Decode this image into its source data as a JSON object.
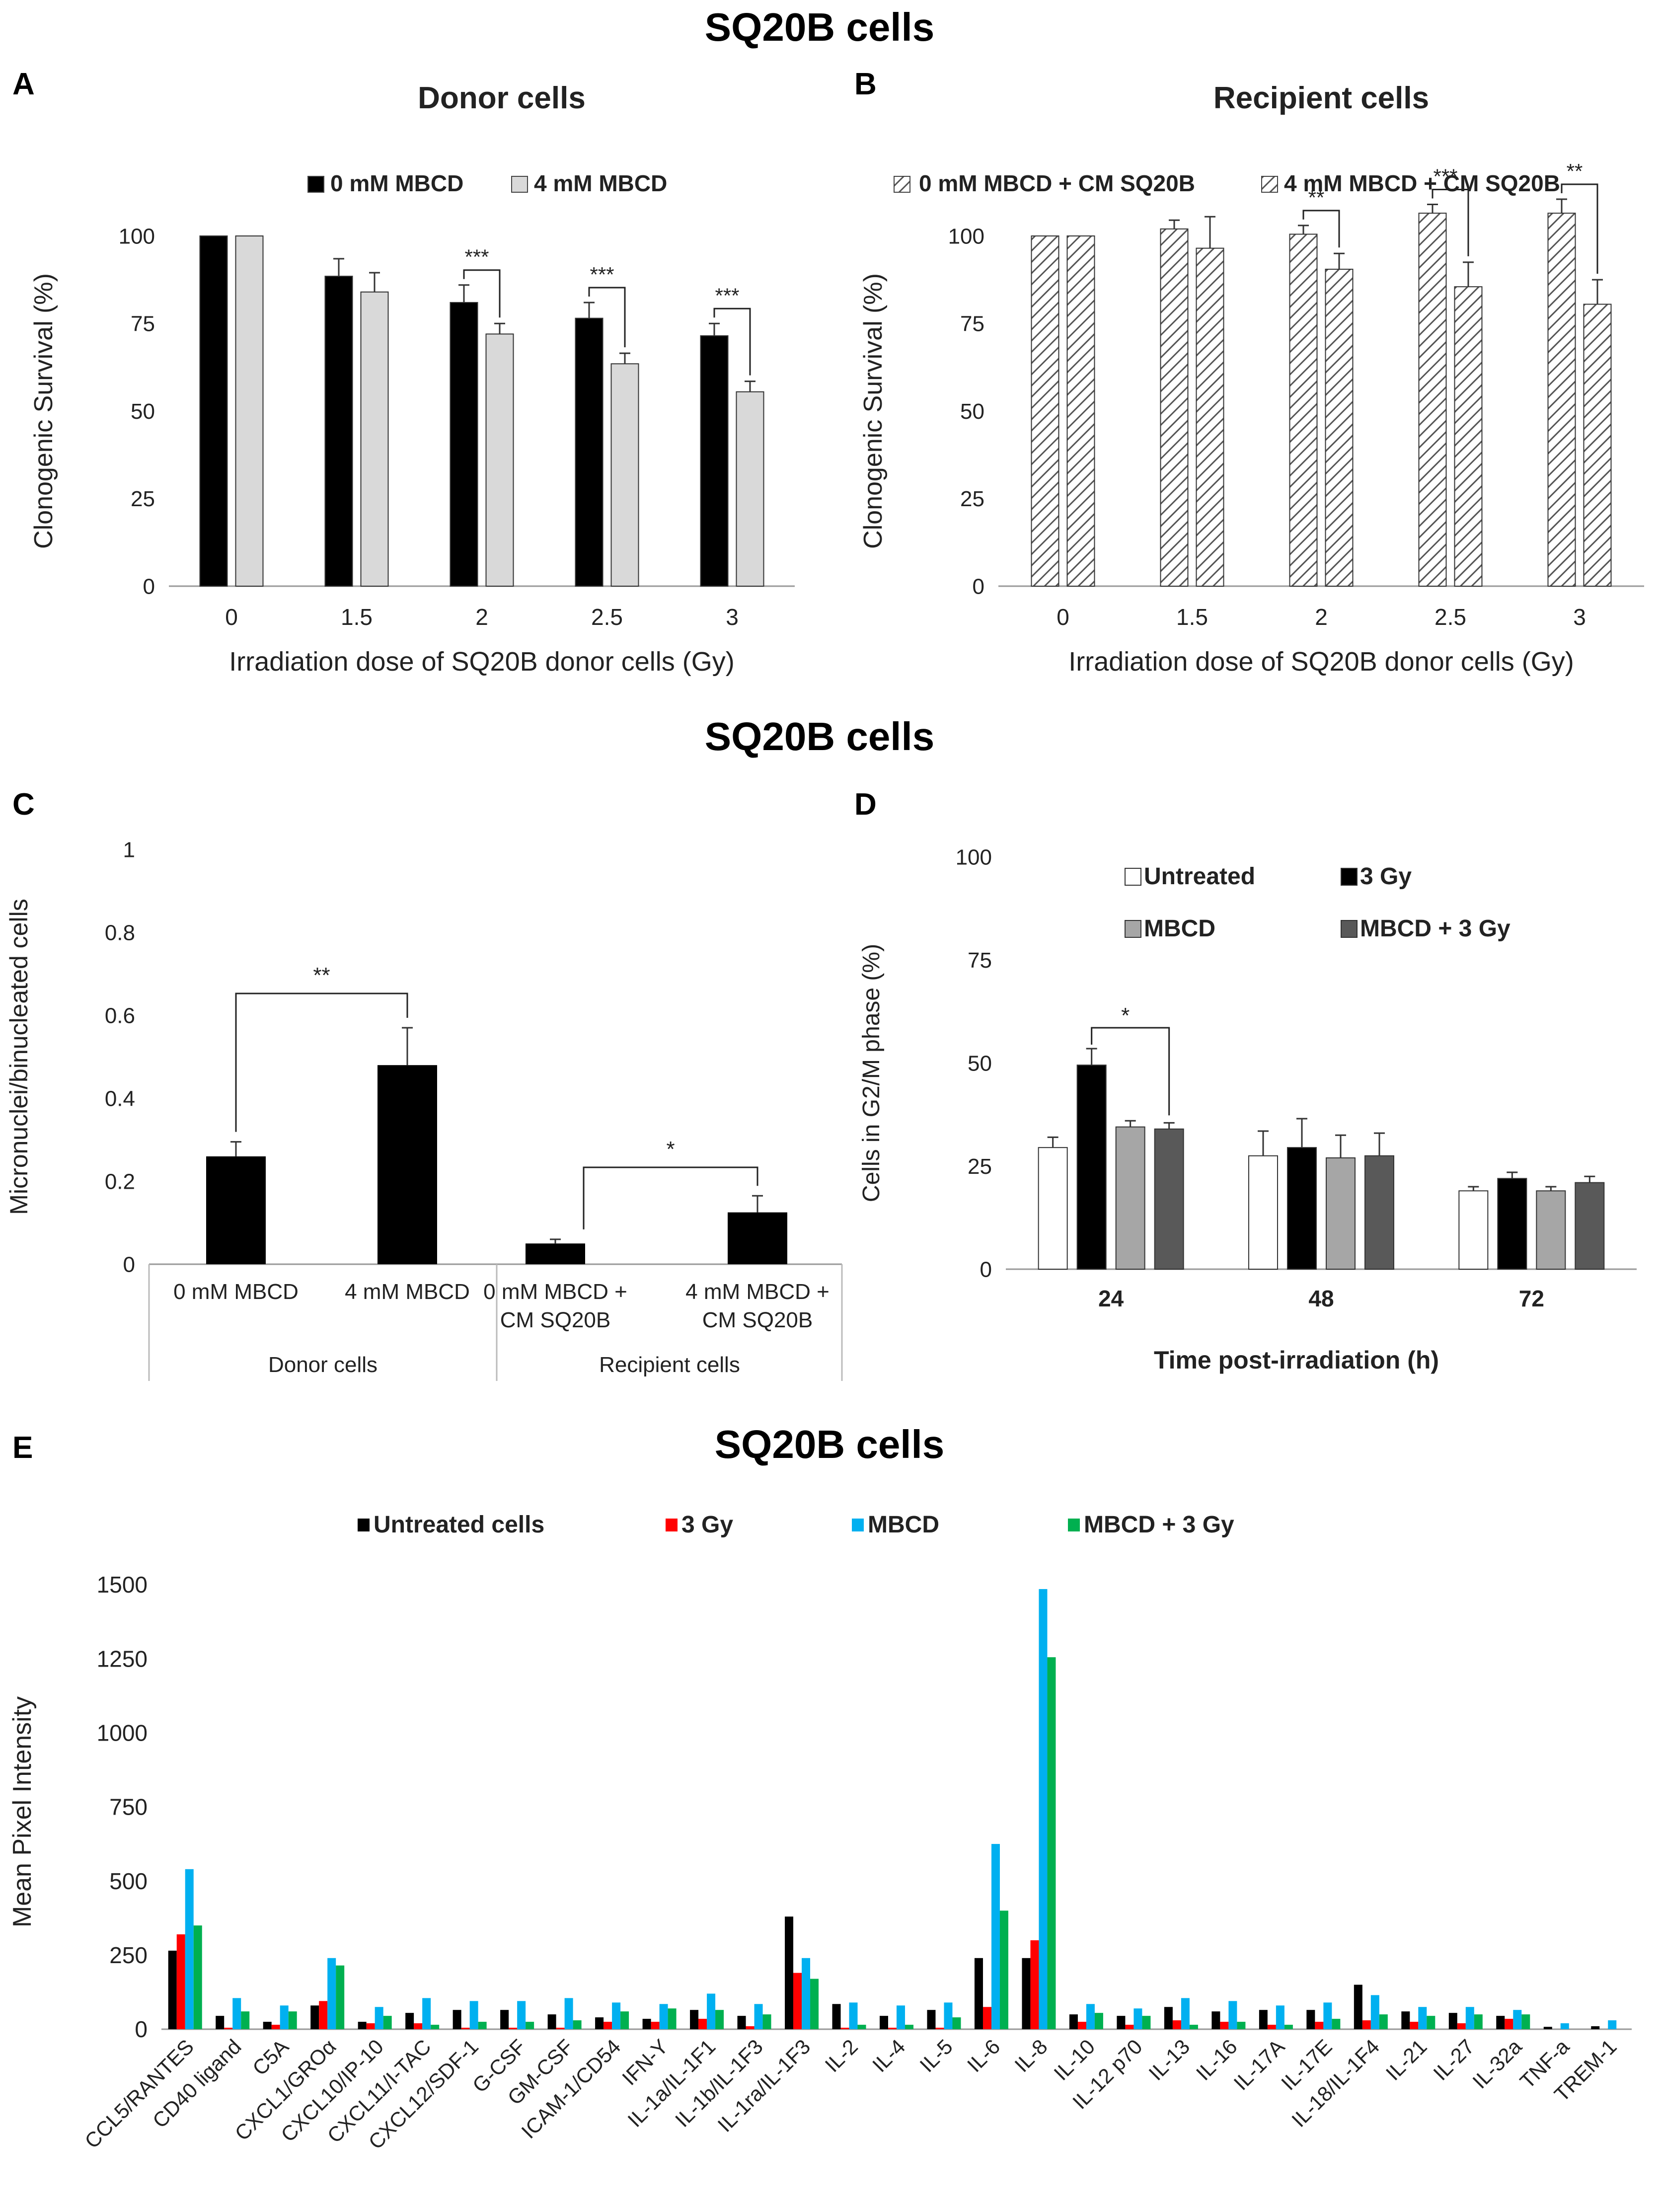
{
  "figure": {
    "title_top": "SQ20B cells",
    "title_mid": "SQ20B cells",
    "title_bottom": "SQ20B cells",
    "panel_letters": [
      "A",
      "B",
      "C",
      "D",
      "E"
    ]
  },
  "colors": {
    "black": "#000000",
    "light_gray": "#d9d9d9",
    "mid_gray": "#a6a6a6",
    "dark_gray": "#595959",
    "white": "#ffffff",
    "red": "#ff0000",
    "blue": "#00b0f0",
    "green": "#00b050"
  },
  "chart_data": [
    {
      "panel": "A",
      "type": "bar",
      "title": "Donor cells",
      "xlabel": "Irradiation dose of SQ20B donor cells (Gy)",
      "ylabel": "Clonogenic Survival (%)",
      "ylim": [
        0,
        100
      ],
      "yticks": [
        "0",
        "25",
        "50",
        "75",
        "100"
      ],
      "categories": [
        "0",
        "1.5",
        "2",
        "2.5",
        "3"
      ],
      "legend_position": "top",
      "series": [
        {
          "name": "0 mM MBCD",
          "values": [
            100,
            88.5,
            81,
            76.5,
            71.5
          ],
          "errors": [
            0,
            5,
            5,
            4.5,
            3.5
          ]
        },
        {
          "name": "4 mM MBCD",
          "values": [
            100,
            84,
            72,
            63.5,
            55.5
          ],
          "errors": [
            0,
            5.5,
            3,
            3,
            3
          ]
        }
      ],
      "significance": [
        {
          "category": "2",
          "label": "***"
        },
        {
          "category": "2.5",
          "label": "***"
        },
        {
          "category": "3",
          "label": "***"
        }
      ]
    },
    {
      "panel": "B",
      "type": "bar",
      "title": "Recipient cells",
      "xlabel": "Irradiation dose of SQ20B donor cells (Gy)",
      "ylabel": "Clonogenic Survival (%)",
      "ylim": [
        0,
        100
      ],
      "yticks": [
        "0",
        "25",
        "50",
        "75",
        "100"
      ],
      "categories": [
        "0",
        "1.5",
        "2",
        "2.5",
        "3"
      ],
      "legend_position": "top",
      "series": [
        {
          "name": "0 mM MBCD + CM SQ20B",
          "values": [
            100,
            102,
            100.5,
            106.5,
            106.5
          ],
          "errors": [
            0,
            2.5,
            2.5,
            2.5,
            4
          ]
        },
        {
          "name": "4 mM MBCD + CM SQ20B",
          "values": [
            100,
            96.5,
            90.5,
            85.5,
            80.5
          ],
          "errors": [
            0,
            9,
            4.5,
            7,
            7
          ]
        }
      ],
      "significance": [
        {
          "category": "2",
          "label": "**"
        },
        {
          "category": "2.5",
          "label": "***"
        },
        {
          "category": "3",
          "label": "**"
        }
      ]
    },
    {
      "panel": "C",
      "type": "bar",
      "ylabel": "Micronuclei/binucleated cells",
      "ylim": [
        0,
        1
      ],
      "yticks": [
        "0",
        "0.2",
        "0.4",
        "0.6",
        "0.8",
        "1"
      ],
      "categories": [
        "0 mM MBCD",
        "4 mM MBCD",
        "0 mM MBCD + CM SQ20B",
        "4 mM MBCD + CM SQ20B"
      ],
      "groups": [
        "Donor cells",
        "Recipient cells"
      ],
      "values": [
        0.26,
        0.48,
        0.05,
        0.125
      ],
      "errors": [
        0.035,
        0.09,
        0.01,
        0.04
      ],
      "significance": [
        {
          "between": [
            "0 mM MBCD",
            "4 mM MBCD"
          ],
          "label": "**"
        },
        {
          "between": [
            "0 mM MBCD + CM SQ20B",
            "4 mM MBCD + CM SQ20B"
          ],
          "label": "*"
        }
      ]
    },
    {
      "panel": "D",
      "type": "bar",
      "xlabel": "Time post-irradiation (h)",
      "ylabel": "Cells in G2/M phase (%)",
      "ylim": [
        0,
        100
      ],
      "yticks": [
        "0",
        "25",
        "50",
        "75",
        "100"
      ],
      "categories": [
        "24",
        "48",
        "72"
      ],
      "legend_position": "top",
      "series": [
        {
          "name": "Untreated",
          "values": [
            29.5,
            27.5,
            19
          ],
          "errors": [
            2.5,
            6,
            1
          ]
        },
        {
          "name": "3 Gy",
          "values": [
            49.5,
            29.5,
            22
          ],
          "errors": [
            4,
            7,
            1.5
          ]
        },
        {
          "name": "MBCD",
          "values": [
            34.5,
            27,
            19
          ],
          "errors": [
            1.5,
            5.5,
            1
          ]
        },
        {
          "name": "MBCD + 3 Gy",
          "values": [
            34,
            27.5,
            21
          ],
          "errors": [
            1.5,
            5.5,
            1.5
          ]
        }
      ],
      "significance": [
        {
          "category": "24",
          "between": [
            "Untreated",
            "MBCD + 3 Gy"
          ],
          "label": "*"
        }
      ]
    },
    {
      "panel": "E",
      "type": "bar",
      "ylabel": "Mean Pixel Intensity",
      "ylim": [
        0,
        1500
      ],
      "yticks": [
        "0",
        "250",
        "500",
        "750",
        "1000",
        "1250",
        "1500"
      ],
      "legend_position": "top",
      "categories": [
        "CCL5/RANTES",
        "CD40 ligand",
        "C5A",
        "CXCL1/GROα",
        "CXCL10/IP-10",
        "CXCL11/I-TAC",
        "CXCL12/SDF-1",
        "G-CSF",
        "GM-CSF",
        "ICAM-1/CD54",
        "IFN-Y",
        "IL-1a/IL-1F1",
        "IL-1b/IL-1F3",
        "IL-1ra/IL-1F3",
        "IL-2",
        "IL-4",
        "IL-5",
        "IL-6",
        "IL-8",
        "IL-10",
        "IL-12 p70",
        "IL-13",
        "IL-16",
        "IL-17A",
        "IL-17E",
        "IL-18/IL-1F4",
        "IL-21",
        "IL-27",
        "IL-32a",
        "TNF-a",
        "TREM-1"
      ],
      "series": [
        {
          "name": "Untreated cells",
          "values": [
            265,
            45,
            25,
            80,
            25,
            55,
            65,
            65,
            50,
            40,
            35,
            65,
            45,
            380,
            85,
            45,
            65,
            240,
            240,
            50,
            45,
            75,
            60,
            65,
            65,
            150,
            60,
            55,
            45,
            8,
            10
          ]
        },
        {
          "name": "3 Gy",
          "values": [
            320,
            5,
            15,
            95,
            20,
            20,
            5,
            5,
            5,
            25,
            25,
            35,
            10,
            190,
            5,
            5,
            5,
            75,
            300,
            25,
            15,
            30,
            25,
            15,
            25,
            30,
            25,
            20,
            35,
            0,
            0
          ]
        },
        {
          "name": "MBCD",
          "values": [
            540,
            105,
            80,
            240,
            75,
            105,
            95,
            95,
            105,
            90,
            85,
            120,
            85,
            240,
            90,
            80,
            90,
            625,
            1485,
            85,
            70,
            105,
            95,
            80,
            90,
            115,
            75,
            75,
            65,
            20,
            30
          ]
        },
        {
          "name": "MBCD + 3 Gy",
          "values": [
            350,
            60,
            60,
            215,
            45,
            15,
            25,
            25,
            30,
            60,
            70,
            65,
            50,
            170,
            15,
            15,
            40,
            400,
            1255,
            55,
            45,
            15,
            25,
            15,
            35,
            50,
            45,
            50,
            50,
            0,
            0
          ]
        }
      ]
    }
  ]
}
